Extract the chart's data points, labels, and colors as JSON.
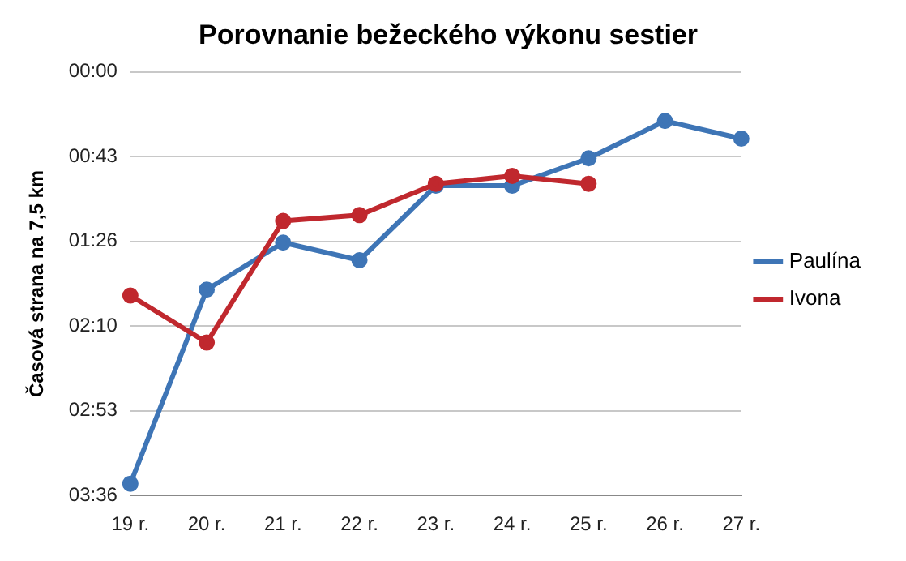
{
  "chart_data": {
    "type": "line",
    "title": "Porovnanie bežeckého výkonu sestier",
    "ylabel": "Časová strana na 7,5 km",
    "categories": [
      "19 r.",
      "20 r.",
      "21 r.",
      "22 r.",
      "23 r.",
      "24 r.",
      "25 r.",
      "26 r.",
      "27 r."
    ],
    "series": [
      {
        "name": "Paulína",
        "color": "#3e75b6",
        "values": [
          210,
          111,
          87,
          96,
          58,
          58,
          44,
          25,
          34
        ]
      },
      {
        "name": "Ivona",
        "color": "#c0282e",
        "values": [
          114,
          138,
          76,
          73,
          57,
          53,
          57,
          null,
          null
        ]
      }
    ],
    "ylim": [
      216,
      0
    ],
    "yticks": [
      {
        "value": 0,
        "label": "00:00"
      },
      {
        "value": 43.2,
        "label": "00:43"
      },
      {
        "value": 86.4,
        "label": "01:26"
      },
      {
        "value": 129.6,
        "label": "02:10"
      },
      {
        "value": 172.8,
        "label": "02:53"
      },
      {
        "value": 216,
        "label": "03:36"
      }
    ],
    "grid": "y",
    "legend": "right",
    "marker": "circle",
    "line_style": "solid"
  }
}
